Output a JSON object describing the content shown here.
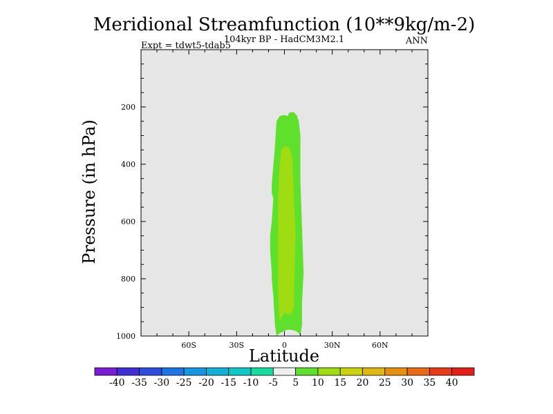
{
  "chart_data": {
    "type": "contour",
    "title": "Meridional Streamfunction (10**9kg/m-2)",
    "subtitle": "104kyr BP - HadCM3M2.1",
    "left_label": "Expt = tdwt5-tdab5",
    "right_label": "ANN",
    "xlabel": "Latitude",
    "ylabel": "Pressure (in hPa)",
    "xlim": [
      -90,
      90
    ],
    "ylim": [
      1000,
      0
    ],
    "x_ticks": [
      {
        "value": -60,
        "label": "60S"
      },
      {
        "value": -30,
        "label": "30S"
      },
      {
        "value": 0,
        "label": "0"
      },
      {
        "value": 30,
        "label": "30N"
      },
      {
        "value": 60,
        "label": "60N"
      }
    ],
    "y_ticks": [
      {
        "value": 200,
        "label": "200"
      },
      {
        "value": 400,
        "label": "400"
      },
      {
        "value": 600,
        "label": "600"
      },
      {
        "value": 800,
        "label": "800"
      },
      {
        "value": 1000,
        "label": "1000"
      }
    ],
    "background_color": "#e6e6e6",
    "filled_regions": [
      {
        "name": "5 to 10",
        "color": "#5fe02c",
        "outline": [
          [
            -5,
            1000
          ],
          [
            -4,
            995
          ],
          [
            -3,
            990
          ],
          [
            0,
            982
          ],
          [
            2,
            978
          ],
          [
            4,
            978
          ],
          [
            7,
            982
          ],
          [
            9,
            990
          ],
          [
            10,
            1000
          ],
          [
            11,
            960
          ],
          [
            11,
            880
          ],
          [
            12,
            780
          ],
          [
            11,
            620
          ],
          [
            10,
            460
          ],
          [
            10,
            300
          ],
          [
            9,
            250
          ],
          [
            8,
            232
          ],
          [
            6,
            218
          ],
          [
            3,
            220
          ],
          [
            2,
            232
          ],
          [
            0,
            228
          ],
          [
            -3,
            232
          ],
          [
            -5,
            250
          ],
          [
            -6,
            340
          ],
          [
            -8,
            470
          ],
          [
            -8,
            500
          ],
          [
            -7,
            520
          ],
          [
            -8,
            600
          ],
          [
            -9,
            650
          ],
          [
            -9,
            700
          ],
          [
            -8,
            780
          ],
          [
            -8,
            800
          ],
          [
            -7,
            860
          ],
          [
            -6,
            960
          ]
        ]
      },
      {
        "name": "10 to 15",
        "color": "#a0dc12",
        "outline": [
          [
            -3,
            950
          ],
          [
            -2,
            935
          ],
          [
            0,
            920
          ],
          [
            4,
            925
          ],
          [
            5,
            915
          ],
          [
            6,
            900
          ],
          [
            6,
            850
          ],
          [
            7,
            650
          ],
          [
            6,
            520
          ],
          [
            5,
            380
          ],
          [
            3,
            340
          ],
          [
            0,
            338
          ],
          [
            -2,
            350
          ],
          [
            -3,
            400
          ],
          [
            -4,
            520
          ],
          [
            -4,
            700
          ],
          [
            -4,
            850
          ]
        ]
      }
    ],
    "colorbar": {
      "labels": [
        "-40",
        "-35",
        "-30",
        "-25",
        "-20",
        "-15",
        "-10",
        "-5",
        "5",
        "10",
        "15",
        "20",
        "25",
        "30",
        "35",
        "40"
      ],
      "colors": [
        "#7a1cd6",
        "#3f2ed8",
        "#2a4ee0",
        "#1e74e2",
        "#1596e0",
        "#12b2d8",
        "#10c8c8",
        "#16dca0",
        "#eeeeee",
        "#5fe02c",
        "#a0dc12",
        "#ccd410",
        "#e2b810",
        "#e69010",
        "#e86a14",
        "#e83a16",
        "#e41e16"
      ]
    }
  }
}
